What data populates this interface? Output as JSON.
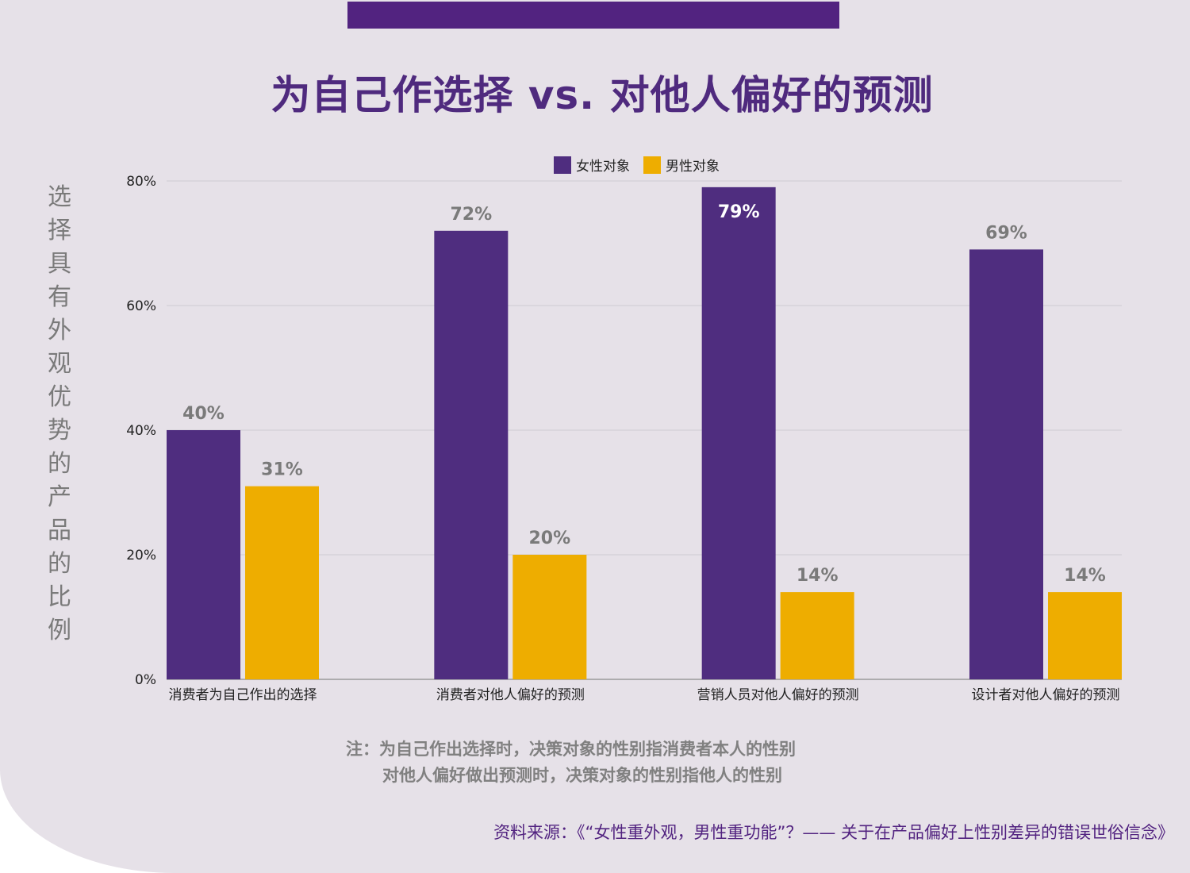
{
  "header": {
    "title": "为自己作选择  vs.  对他人偏好的预测"
  },
  "colors": {
    "female": "#4f2d7f",
    "male": "#eead00",
    "accent": "#522380"
  },
  "chart_data": {
    "type": "bar",
    "title": "为自己作选择  vs.  对他人偏好的预测",
    "xlabel": "",
    "ylabel": "选择具有外观优势的产品的比例",
    "ylim": [
      0,
      80
    ],
    "yticks": [
      "0%",
      "20%",
      "40%",
      "60%",
      "80%"
    ],
    "grid": true,
    "legend_position": "top-center",
    "categories": [
      "消费者为自己作出的选择",
      "消费者对他人偏好的预测",
      "营销人员对他人偏好的预测",
      "设计者对他人偏好的预测"
    ],
    "series": [
      {
        "name": "女性对象",
        "values": [
          40,
          72,
          79,
          69
        ],
        "labels": [
          "40%",
          "72%",
          "79%",
          "69%"
        ]
      },
      {
        "name": "男性对象",
        "values": [
          31,
          20,
          14,
          14
        ],
        "labels": [
          "31%",
          "20%",
          "14%",
          "14%"
        ]
      }
    ]
  },
  "note": {
    "line1": "注：为自己作出选择时，决策对象的性别指消费者本人的性别",
    "line2": "对他人偏好做出预测时，决策对象的性别指他人的性别"
  },
  "source": "资料来源：《“女性重外观，男性重功能”？—— 关于在产品偏好上性别差异的错误世俗信念》"
}
